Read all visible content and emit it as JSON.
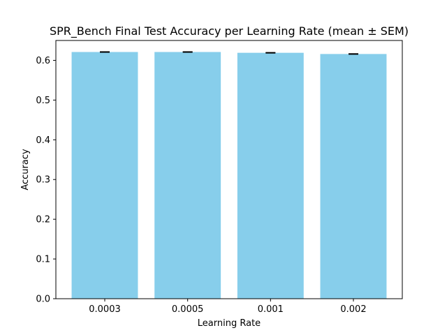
{
  "chart_data": {
    "type": "bar",
    "title": "SPR_Bench Final Test Accuracy per Learning Rate (mean ± SEM)",
    "xlabel": "Learning Rate",
    "ylabel": "Accuracy",
    "categories": [
      "0.0003",
      "0.0005",
      "0.001",
      "0.002"
    ],
    "values": [
      0.621,
      0.621,
      0.619,
      0.616
    ],
    "errors": [
      0.0005,
      0.0005,
      0.0005,
      0.0005
    ],
    "ylim": [
      0,
      0.65
    ],
    "yticks": [
      "0.0",
      "0.1",
      "0.2",
      "0.3",
      "0.4",
      "0.5",
      "0.6"
    ],
    "bar_color": "#87ceeb",
    "error_color": "#000000",
    "grid": false,
    "legend": "none"
  }
}
